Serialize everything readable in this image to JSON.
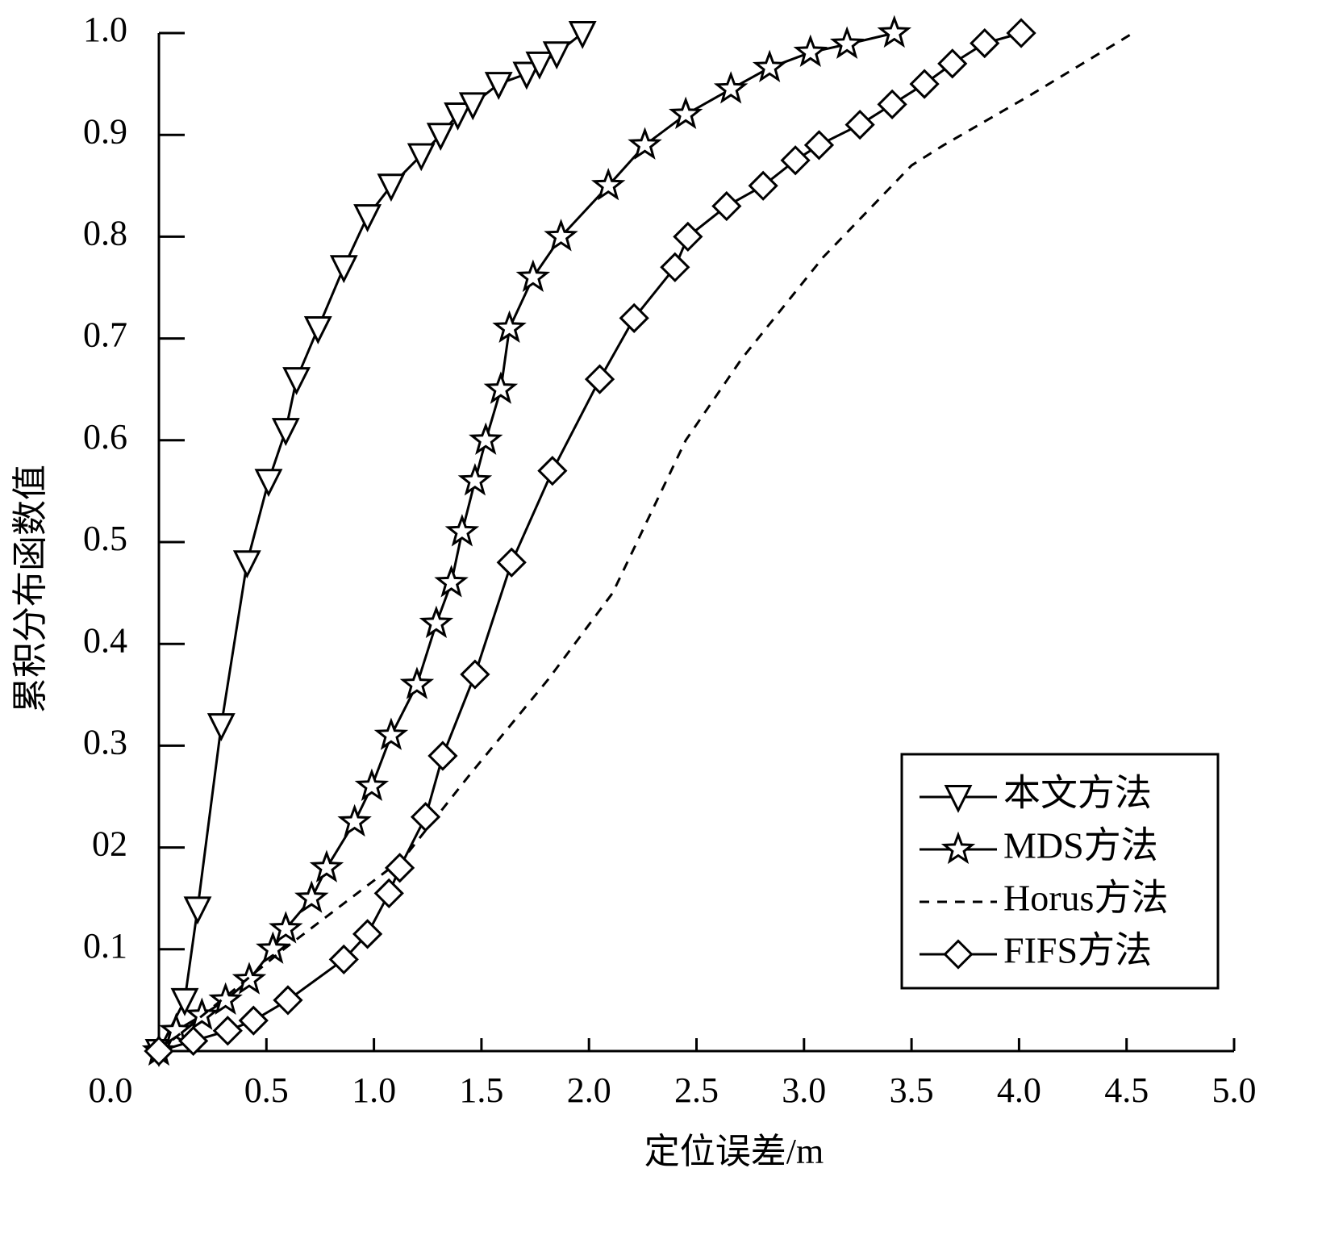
{
  "chart_data": {
    "type": "line",
    "xlabel": "定位误差/m",
    "ylabel": "累积分布函数值",
    "xlim": [
      0,
      5
    ],
    "ylim": [
      0,
      1
    ],
    "xticks": [
      {
        "value": 0,
        "label": "0.0"
      },
      0.5,
      {
        "value": 1,
        "label": "1.0"
      },
      1.5,
      {
        "value": 2,
        "label": "2.0"
      },
      2.5,
      {
        "value": 3,
        "label": "3.0"
      },
      3.5,
      {
        "value": 4,
        "label": "4.0"
      },
      4.5,
      {
        "value": 5,
        "label": "5.0"
      }
    ],
    "yticks": [
      0.1,
      {
        "value": 0.2,
        "label": "02"
      },
      0.3,
      0.4,
      0.5,
      0.6,
      0.7,
      0.8,
      0.9,
      {
        "value": 1,
        "label": "1.0"
      }
    ],
    "legend": "lower right",
    "series": [
      {
        "name": "本文方法",
        "color": "#000000",
        "marker": "triangle-down",
        "dash": false,
        "x": [
          0,
          0.12,
          0.18,
          0.29,
          0.41,
          0.51,
          0.59,
          0.64,
          0.74,
          0.86,
          0.97,
          1.08,
          1.22,
          1.31,
          1.39,
          1.46,
          1.58,
          1.71,
          1.77,
          1.85,
          1.97
        ],
        "values": [
          0,
          0.05,
          0.14,
          0.32,
          0.48,
          0.56,
          0.61,
          0.66,
          0.71,
          0.77,
          0.82,
          0.85,
          0.88,
          0.9,
          0.92,
          0.93,
          0.95,
          0.96,
          0.97,
          0.98,
          1.0
        ]
      },
      {
        "name": "MDS方法",
        "color": "#000000",
        "marker": "star",
        "dash": false,
        "x": [
          0,
          0.08,
          0.2,
          0.31,
          0.42,
          0.53,
          0.59,
          0.71,
          0.78,
          0.91,
          0.99,
          1.08,
          1.2,
          1.29,
          1.36,
          1.41,
          1.47,
          1.52,
          1.59,
          1.63,
          1.74,
          1.87,
          2.09,
          2.26,
          2.45,
          2.66,
          2.84,
          3.03,
          3.2,
          3.42
        ],
        "values": [
          0,
          0.02,
          0.035,
          0.05,
          0.07,
          0.1,
          0.12,
          0.15,
          0.18,
          0.225,
          0.26,
          0.31,
          0.36,
          0.42,
          0.46,
          0.51,
          0.56,
          0.6,
          0.65,
          0.71,
          0.76,
          0.8,
          0.85,
          0.89,
          0.92,
          0.945,
          0.966,
          0.981,
          0.989,
          1.0
        ]
      },
      {
        "name": "Horus方法",
        "color": "#000000",
        "marker": null,
        "dash": true,
        "x": [
          0,
          0.58,
          1.14,
          1.44,
          1.81,
          2.11,
          2.45,
          2.71,
          3.09,
          3.5,
          3.65,
          4.06,
          4.53
        ],
        "values": [
          0,
          0.1,
          0.19,
          0.27,
          0.365,
          0.45,
          0.6,
          0.68,
          0.78,
          0.87,
          0.89,
          0.94,
          1.0
        ]
      },
      {
        "name": "FIFS方法",
        "color": "#000000",
        "marker": "diamond",
        "dash": false,
        "x": [
          0,
          0.16,
          0.32,
          0.44,
          0.6,
          0.86,
          0.97,
          1.07,
          1.12,
          1.24,
          1.32,
          1.47,
          1.64,
          1.83,
          2.05,
          2.21,
          2.4,
          2.46,
          2.64,
          2.81,
          2.96,
          3.07,
          3.26,
          3.41,
          3.56,
          3.69,
          3.84,
          4.01
        ],
        "values": [
          0,
          0.01,
          0.02,
          0.03,
          0.05,
          0.09,
          0.115,
          0.155,
          0.18,
          0.23,
          0.29,
          0.37,
          0.48,
          0.57,
          0.66,
          0.72,
          0.77,
          0.8,
          0.83,
          0.85,
          0.875,
          0.89,
          0.91,
          0.93,
          0.95,
          0.97,
          0.99,
          1.0
        ]
      }
    ]
  }
}
